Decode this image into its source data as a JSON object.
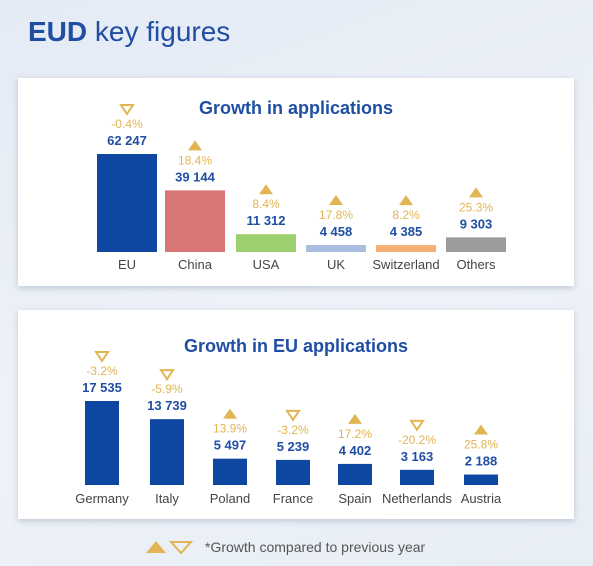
{
  "header": {
    "title_strong": "EUD",
    "title_rest": " key figures"
  },
  "colors": {
    "title_blue": "#1f4ea3",
    "bar_blue": "#0d47a1",
    "gold": "#e1b554",
    "label_gray": "#444444"
  },
  "chart_data": [
    {
      "type": "bar",
      "title": "Growth in applications",
      "categories": [
        "EU",
        "China",
        "USA",
        "UK",
        "Switzerland",
        "Others"
      ],
      "values": [
        62247,
        39144,
        11312,
        4458,
        4385,
        9303
      ],
      "value_labels": [
        "62 247",
        "39 144",
        "11 312",
        "4 458",
        "4 385",
        "9 303"
      ],
      "growth_labels": [
        "-0.4%",
        "18.4%",
        "8.4%",
        "17.8%",
        "8.2%",
        "25.3%"
      ],
      "growth_direction": [
        "down",
        "up",
        "up",
        "up",
        "up",
        "up"
      ],
      "bar_colors": [
        "#0d47a1",
        "#d77674",
        "#9ccf6e",
        "#a9bddf",
        "#f6b073",
        "#9c9c9c"
      ],
      "ylim": [
        0,
        62247
      ]
    },
    {
      "type": "bar",
      "title": "Growth in EU applications",
      "categories": [
        "Germany",
        "Italy",
        "Poland",
        "France",
        "Spain",
        "Netherlands",
        "Austria"
      ],
      "values": [
        17535,
        13739,
        5497,
        5239,
        4402,
        3163,
        2188
      ],
      "value_labels": [
        "17 535",
        "13 739",
        "5 497",
        "5 239",
        "4 402",
        "3 163",
        "2 188"
      ],
      "growth_labels": [
        "-3.2%",
        "-5.9%",
        "13.9%",
        "-3.2%",
        "17.2%",
        "-20.2%",
        "25.8%"
      ],
      "growth_direction": [
        "down",
        "down",
        "up",
        "down",
        "up",
        "down",
        "up"
      ],
      "bar_colors": [
        "#0d47a1",
        "#0d47a1",
        "#0d47a1",
        "#0d47a1",
        "#0d47a1",
        "#0d47a1",
        "#0d47a1"
      ],
      "ylim": [
        0,
        17535
      ]
    }
  ],
  "footnote": {
    "text": "*Growth compared to previous year"
  }
}
